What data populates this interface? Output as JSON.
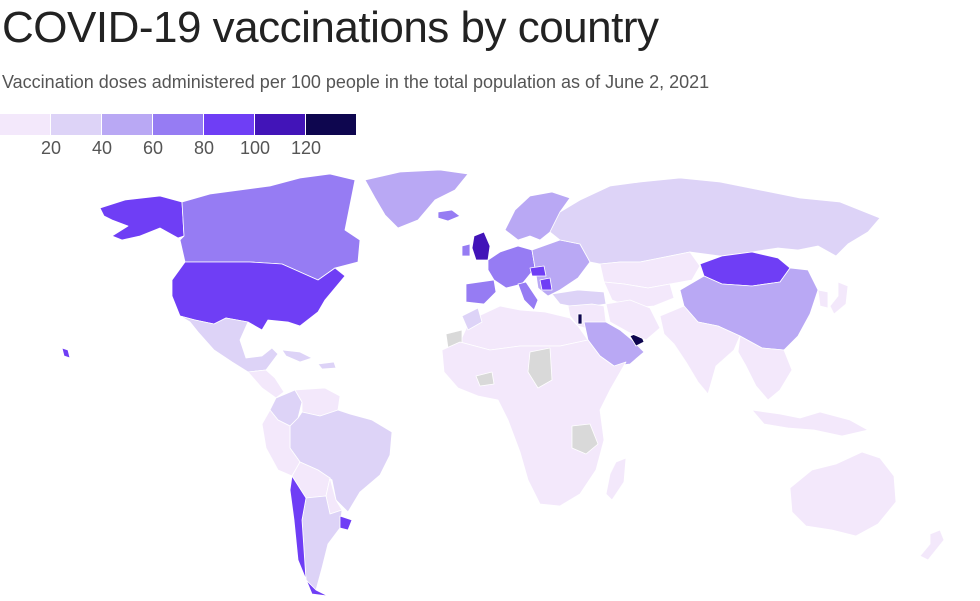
{
  "title": "COVID-19 vaccinations by country",
  "subtitle": "Vaccination doses administered per 100 people in the total population as of June 2, 2021",
  "legend": {
    "bins": [
      {
        "color": "#f3e8fb"
      },
      {
        "color": "#ddd3f7"
      },
      {
        "color": "#b9a8f4"
      },
      {
        "color": "#967cf3"
      },
      {
        "color": "#6f3ef5"
      },
      {
        "color": "#4214b8"
      },
      {
        "color": "#0e064f"
      }
    ],
    "labels": [
      "20",
      "40",
      "60",
      "80",
      "100",
      "120"
    ]
  },
  "colors": {
    "no_data": "#d9d9d9",
    "background": "#ffffff"
  },
  "countries": [
    {
      "name": "Alaska",
      "bin": 4
    },
    {
      "name": "Canada",
      "bin": 3
    },
    {
      "name": "Greenland",
      "bin": 2
    },
    {
      "name": "United States",
      "bin": 4
    },
    {
      "name": "Mexico",
      "bin": 1
    },
    {
      "name": "Central America",
      "bin": 0
    },
    {
      "name": "Caribbean",
      "bin": 1
    },
    {
      "name": "Colombia",
      "bin": 1
    },
    {
      "name": "Venezuela",
      "bin": 0
    },
    {
      "name": "Brazil",
      "bin": 1
    },
    {
      "name": "Peru",
      "bin": 0
    },
    {
      "name": "Bolivia",
      "bin": 0
    },
    {
      "name": "Paraguay",
      "bin": 0
    },
    {
      "name": "Argentina",
      "bin": 1
    },
    {
      "name": "Chile",
      "bin": 4
    },
    {
      "name": "Uruguay",
      "bin": 4
    },
    {
      "name": "Iceland",
      "bin": 3
    },
    {
      "name": "Scandinavia",
      "bin": 2
    },
    {
      "name": "United Kingdom",
      "bin": 5
    },
    {
      "name": "Ireland",
      "bin": 3
    },
    {
      "name": "Western Europe",
      "bin": 3
    },
    {
      "name": "Spain",
      "bin": 3
    },
    {
      "name": "Italy",
      "bin": 3
    },
    {
      "name": "Eastern Europe",
      "bin": 2
    },
    {
      "name": "Hungary",
      "bin": 4
    },
    {
      "name": "Serbia",
      "bin": 4
    },
    {
      "name": "Turkey",
      "bin": 1
    },
    {
      "name": "Russia",
      "bin": 1
    },
    {
      "name": "Kazakhstan",
      "bin": 0
    },
    {
      "name": "Central Asia",
      "bin": 0
    },
    {
      "name": "Mongolia",
      "bin": 4
    },
    {
      "name": "China",
      "bin": 2
    },
    {
      "name": "Japan",
      "bin": 0
    },
    {
      "name": "Korea",
      "bin": 0
    },
    {
      "name": "Middle East",
      "bin": 0
    },
    {
      "name": "Saudi Arabia",
      "bin": 2
    },
    {
      "name": "United Arab Emirates",
      "bin": 6
    },
    {
      "name": "Israel",
      "bin": 6
    },
    {
      "name": "Iran",
      "bin": 0
    },
    {
      "name": "India",
      "bin": 0
    },
    {
      "name": "Southeast Asia",
      "bin": 0
    },
    {
      "name": "Indonesia",
      "bin": 0
    },
    {
      "name": "North Africa",
      "bin": 0
    },
    {
      "name": "Morocco",
      "bin": 1
    },
    {
      "name": "Sub-Saharan Africa",
      "bin": 0
    },
    {
      "name": "Western Sahara",
      "bin": -1
    },
    {
      "name": "Chad",
      "bin": -1
    },
    {
      "name": "Burkina Faso",
      "bin": -1
    },
    {
      "name": "Tanzania",
      "bin": -1
    },
    {
      "name": "Madagascar",
      "bin": 0
    },
    {
      "name": "Australia",
      "bin": 0
    },
    {
      "name": "New Zealand",
      "bin": 0
    },
    {
      "name": "Hawaii",
      "bin": 4
    }
  ]
}
